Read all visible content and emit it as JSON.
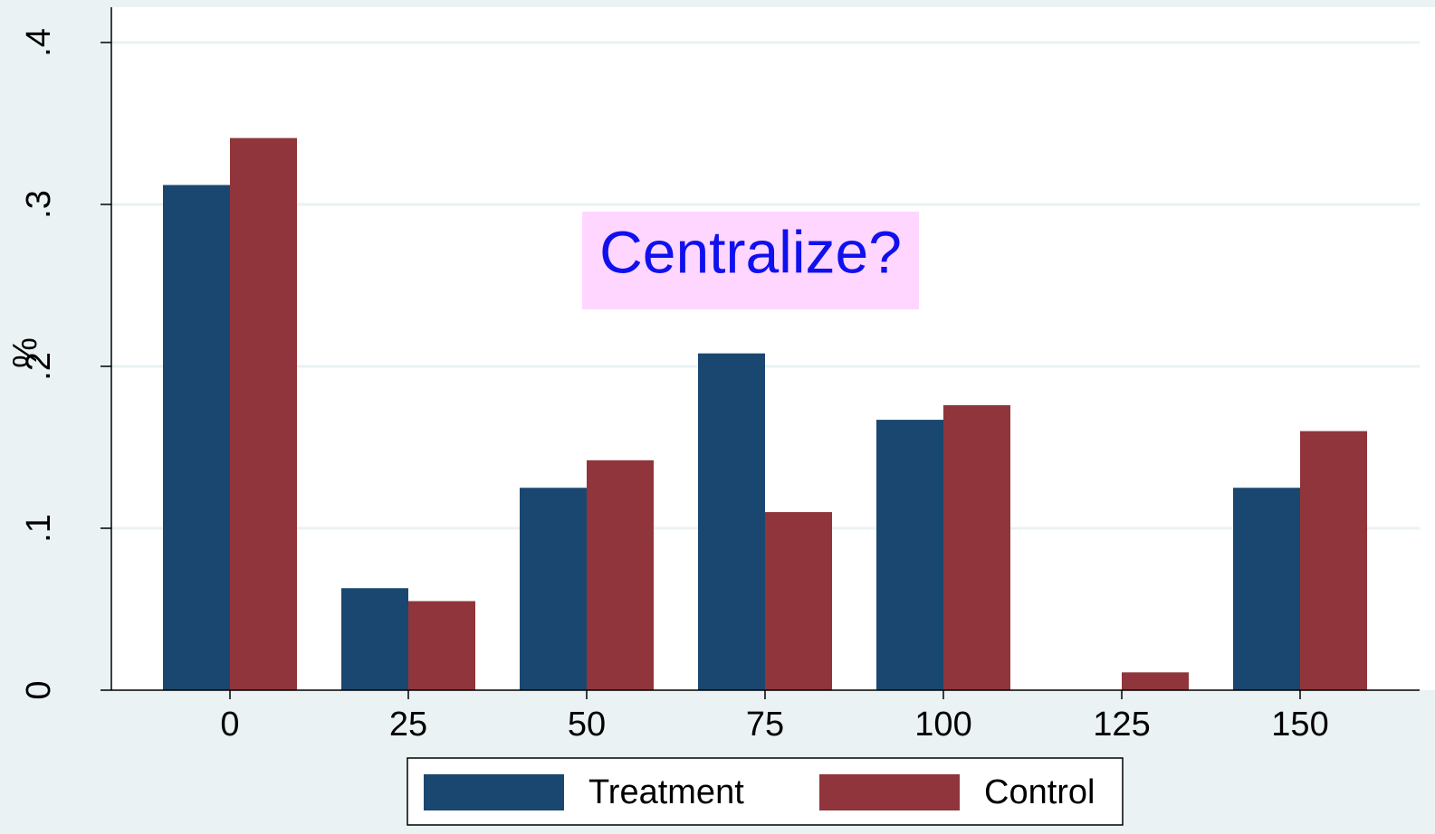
{
  "chart_data": {
    "type": "bar",
    "ylabel": "%",
    "categories": [
      "0",
      "25",
      "50",
      "75",
      "100",
      "125",
      "150"
    ],
    "series": [
      {
        "name": "Treatment",
        "color": "#1a476f",
        "values": [
          0.312,
          0.063,
          0.125,
          0.208,
          0.167,
          0,
          0.125
        ]
      },
      {
        "name": "Control",
        "color": "#90353b",
        "values": [
          0.341,
          0.055,
          0.142,
          0.11,
          0.176,
          0.011,
          0.16
        ]
      }
    ],
    "ylim": [
      0,
      0.4
    ],
    "yticks": [
      0,
      {
        "value": 0.1,
        "label": ".1"
      },
      {
        "value": 0.2,
        "label": ".2"
      },
      {
        "value": 0.3,
        "label": ".3"
      },
      {
        "value": 0.4,
        "label": ".4"
      }
    ],
    "grid": true,
    "annotation": "Centralize?"
  }
}
